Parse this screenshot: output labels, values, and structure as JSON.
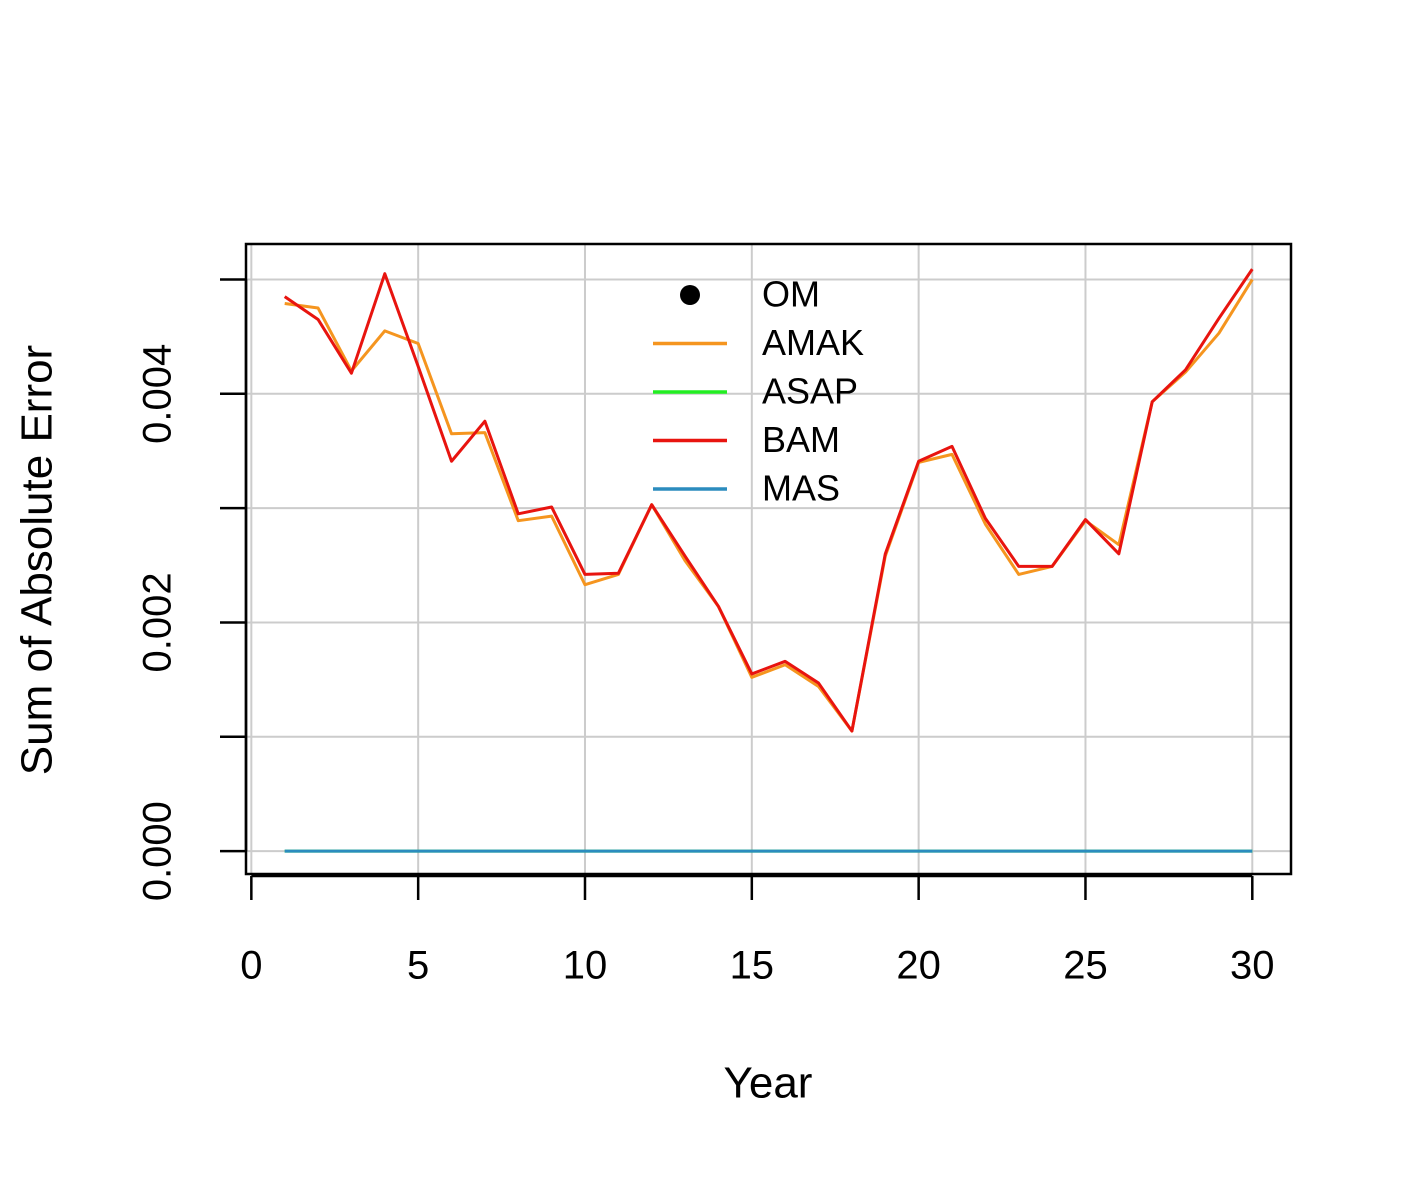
{
  "chart_data": {
    "type": "line",
    "xlabel": "Year",
    "ylabel": "Sum of Absolute Error",
    "x": [
      1,
      2,
      3,
      4,
      5,
      6,
      7,
      8,
      9,
      10,
      11,
      12,
      13,
      14,
      15,
      16,
      17,
      18,
      19,
      20,
      21,
      22,
      23,
      24,
      25,
      26,
      27,
      28,
      29,
      30
    ],
    "series": [
      {
        "name": "OM",
        "color": "#000000",
        "marker": "point",
        "values": [
          null,
          null,
          null,
          null,
          null,
          null,
          null,
          null,
          null,
          null,
          null,
          null,
          null,
          null,
          null,
          null,
          null,
          null,
          null,
          null,
          null,
          null,
          null,
          null,
          null,
          null,
          null,
          null,
          null,
          null
        ]
      },
      {
        "name": "AMAK",
        "color": "#f5951f",
        "values": [
          0.00479,
          0.00475,
          0.0042,
          0.00455,
          0.00444,
          0.00365,
          0.00366,
          0.00289,
          0.00293,
          0.00233,
          0.00242,
          0.00303,
          0.00254,
          0.00214,
          0.00152,
          0.00163,
          0.00144,
          0.00105,
          0.00258,
          0.0034,
          0.00347,
          0.00286,
          0.00242,
          0.00249,
          0.00289,
          0.00268,
          0.00393,
          0.00419,
          0.00453,
          0.005
        ]
      },
      {
        "name": "ASAP",
        "color": "#22ee22",
        "values": [
          0,
          0,
          0,
          0,
          0,
          0,
          0,
          0,
          0,
          0,
          0,
          0,
          0,
          0,
          0,
          0,
          0,
          0,
          0,
          0,
          0,
          0,
          0,
          0,
          0,
          0,
          0,
          0,
          0,
          0
        ]
      },
      {
        "name": "BAM",
        "color": "#e8140f",
        "values": [
          0.00485,
          0.00465,
          0.00418,
          0.00505,
          0.00424,
          0.00341,
          0.00376,
          0.00295,
          0.00301,
          0.00242,
          0.00243,
          0.00303,
          0.00258,
          0.00214,
          0.00155,
          0.00166,
          0.00147,
          0.00105,
          0.0026,
          0.00341,
          0.00354,
          0.00291,
          0.00249,
          0.00249,
          0.0029,
          0.0026,
          0.00393,
          0.00421,
          0.00466,
          0.00509
        ]
      },
      {
        "name": "MAS",
        "color": "#2b8cbe",
        "values": [
          0,
          0,
          0,
          0,
          0,
          0,
          0,
          0,
          0,
          0,
          0,
          0,
          0,
          0,
          0,
          0,
          0,
          0,
          0,
          0,
          0,
          0,
          0,
          0,
          0,
          0,
          0,
          0,
          0,
          0
        ]
      }
    ],
    "xlim": [
      -0.16,
      31.16
    ],
    "xticks": [
      0,
      5,
      10,
      15,
      20,
      25,
      30
    ],
    "ylim": [
      -0.0002,
      0.00531
    ],
    "yticks": [
      {
        "value": 0,
        "label": "0.000"
      },
      {
        "value": 0.001,
        "label": null
      },
      {
        "value": 0.002,
        "label": "0.002"
      },
      {
        "value": 0.003,
        "label": null
      },
      {
        "value": 0.004,
        "label": "0.004"
      },
      {
        "value": 0.005,
        "label": null
      }
    ],
    "grid": true,
    "legend": "top"
  }
}
